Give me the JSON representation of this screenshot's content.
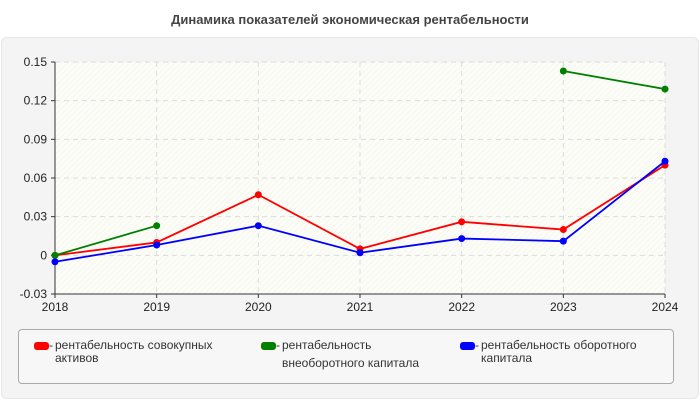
{
  "chart_data": {
    "type": "line",
    "title": "Динамика показателей экономическая рентабельности",
    "xlabel": "",
    "ylabel": "",
    "categories": [
      "2018",
      "2019",
      "2020",
      "2021",
      "2022",
      "2023",
      "2024"
    ],
    "ylim": [
      -0.03,
      0.15
    ],
    "yticks": [
      "0.15",
      "0.12",
      "0.09",
      "0.06",
      "0.03",
      "0",
      "-0.03"
    ],
    "grid": true,
    "legend_position": "bottom",
    "series": [
      {
        "name": "рентабельность совокупных активов",
        "color": "#ff0000",
        "values": [
          0.0,
          0.01,
          0.047,
          0.005,
          0.026,
          0.02,
          0.07
        ]
      },
      {
        "name": "рентабельность внеоборотного капитала",
        "color": "#008000",
        "values": [
          0.0,
          0.023,
          null,
          null,
          null,
          0.143,
          0.129
        ]
      },
      {
        "name": "рентабельность оборотного капитала",
        "color": "#0000ff",
        "values": [
          -0.005,
          0.008,
          0.023,
          0.002,
          0.013,
          0.011,
          0.073
        ]
      }
    ]
  }
}
